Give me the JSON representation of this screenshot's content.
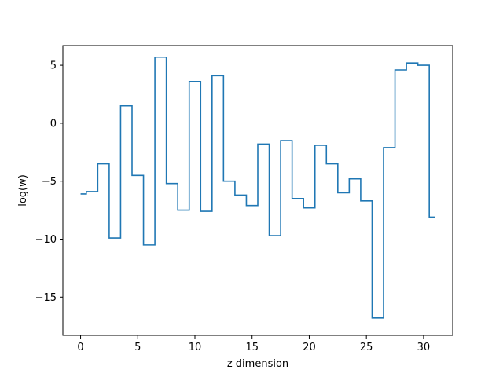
{
  "chart_data": {
    "type": "line",
    "drawstyle": "steps-mid",
    "xlabel": "z dimension",
    "ylabel": "log(w)",
    "xlim": [
      -1.55,
      32.55
    ],
    "ylim": [
      -18.3,
      6.7
    ],
    "xticks": [
      0,
      5,
      10,
      15,
      20,
      25,
      30
    ],
    "yticks": [
      5,
      0,
      -5,
      -10,
      -15
    ],
    "ytick_labels": [
      "5",
      "0",
      "−5",
      "−10",
      "−15"
    ],
    "grid": false,
    "series": [
      {
        "color": "#1f77b4",
        "x": [
          0,
          1,
          2,
          3,
          4,
          5,
          6,
          7,
          8,
          9,
          10,
          11,
          12,
          13,
          14,
          15,
          16,
          17,
          18,
          19,
          20,
          21,
          22,
          23,
          24,
          25,
          26,
          27,
          28,
          29,
          30,
          31
        ],
        "y": [
          -6.1,
          -5.9,
          -3.5,
          -9.9,
          1.5,
          -4.5,
          -10.5,
          5.7,
          -5.2,
          -7.5,
          3.6,
          -7.6,
          4.1,
          -5.0,
          -6.2,
          -7.1,
          -1.8,
          -9.7,
          -1.5,
          -6.5,
          -7.3,
          -1.9,
          -3.5,
          -6.0,
          -4.8,
          -6.7,
          -16.8,
          -2.1,
          4.6,
          5.2,
          5.0,
          -8.1
        ]
      }
    ]
  }
}
